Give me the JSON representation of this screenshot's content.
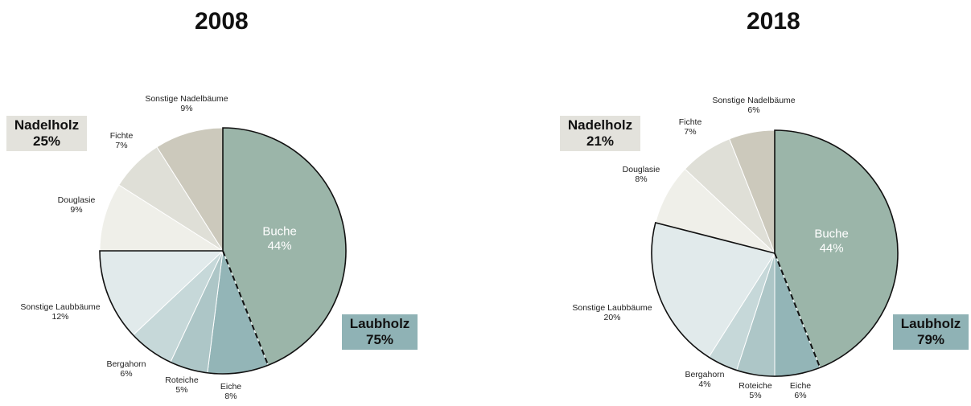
{
  "chart_data": [
    {
      "type": "pie",
      "title": "2008",
      "start_angle_deg": 0,
      "direction": "clockwise",
      "slices": [
        {
          "label": "Buche",
          "value": 44,
          "value_label": "44%",
          "color": "#9bb5a9",
          "group": "Laubholz"
        },
        {
          "label": "Eiche",
          "value": 8,
          "value_label": "8%",
          "color": "#93b5b7",
          "group": "Laubholz"
        },
        {
          "label": "Roteiche",
          "value": 5,
          "value_label": "5%",
          "color": "#adc6c7",
          "group": "Laubholz"
        },
        {
          "label": "Bergahorn",
          "value": 6,
          "value_label": "6%",
          "color": "#c6d8d9",
          "group": "Laubholz"
        },
        {
          "label": "Sonstige Laubbäume",
          "value": 12,
          "value_label": "12%",
          "color": "#e1eaeb",
          "group": "Laubholz"
        },
        {
          "label": "Douglasie",
          "value": 9,
          "value_label": "9%",
          "color": "#efefe9",
          "group": "Nadelholz"
        },
        {
          "label": "Fichte",
          "value": 7,
          "value_label": "7%",
          "color": "#dfdfd7",
          "group": "Nadelholz"
        },
        {
          "label": "Sonstige Nadelbäume",
          "value": 9,
          "value_label": "9%",
          "color": "#ccc9bc",
          "group": "Nadelholz"
        }
      ],
      "groups": [
        {
          "name": "Laubholz",
          "value": 75,
          "value_label": "75%",
          "color": "#8fb2b5",
          "placement": "right"
        },
        {
          "name": "Nadelholz",
          "value": 25,
          "value_label": "25%",
          "color": "#e3e2dc",
          "placement": "top-left"
        }
      ]
    },
    {
      "type": "pie",
      "title": "2018",
      "start_angle_deg": 0,
      "direction": "clockwise",
      "slices": [
        {
          "label": "Buche",
          "value": 44,
          "value_label": "44%",
          "color": "#9bb5a9",
          "group": "Laubholz"
        },
        {
          "label": "Eiche",
          "value": 6,
          "value_label": "6%",
          "color": "#93b5b7",
          "group": "Laubholz"
        },
        {
          "label": "Roteiche",
          "value": 5,
          "value_label": "5%",
          "color": "#adc6c7",
          "group": "Laubholz"
        },
        {
          "label": "Bergahorn",
          "value": 4,
          "value_label": "4%",
          "color": "#c6d8d9",
          "group": "Laubholz"
        },
        {
          "label": "Sonstige Laubbäume",
          "value": 20,
          "value_label": "20%",
          "color": "#e1eaeb",
          "group": "Laubholz"
        },
        {
          "label": "Douglasie",
          "value": 8,
          "value_label": "8%",
          "color": "#efefe9",
          "group": "Nadelholz"
        },
        {
          "label": "Fichte",
          "value": 7,
          "value_label": "7%",
          "color": "#dfdfd7",
          "group": "Nadelholz"
        },
        {
          "label": "Sonstige Nadelbäume",
          "value": 6,
          "value_label": "6%",
          "color": "#ccc9bc",
          "group": "Nadelholz"
        }
      ],
      "groups": [
        {
          "name": "Laubholz",
          "value": 79,
          "value_label": "79%",
          "color": "#8fb2b5",
          "placement": "right"
        },
        {
          "name": "Nadelholz",
          "value": 21,
          "value_label": "21%",
          "color": "#e3e2dc",
          "placement": "top-left"
        }
      ]
    }
  ]
}
